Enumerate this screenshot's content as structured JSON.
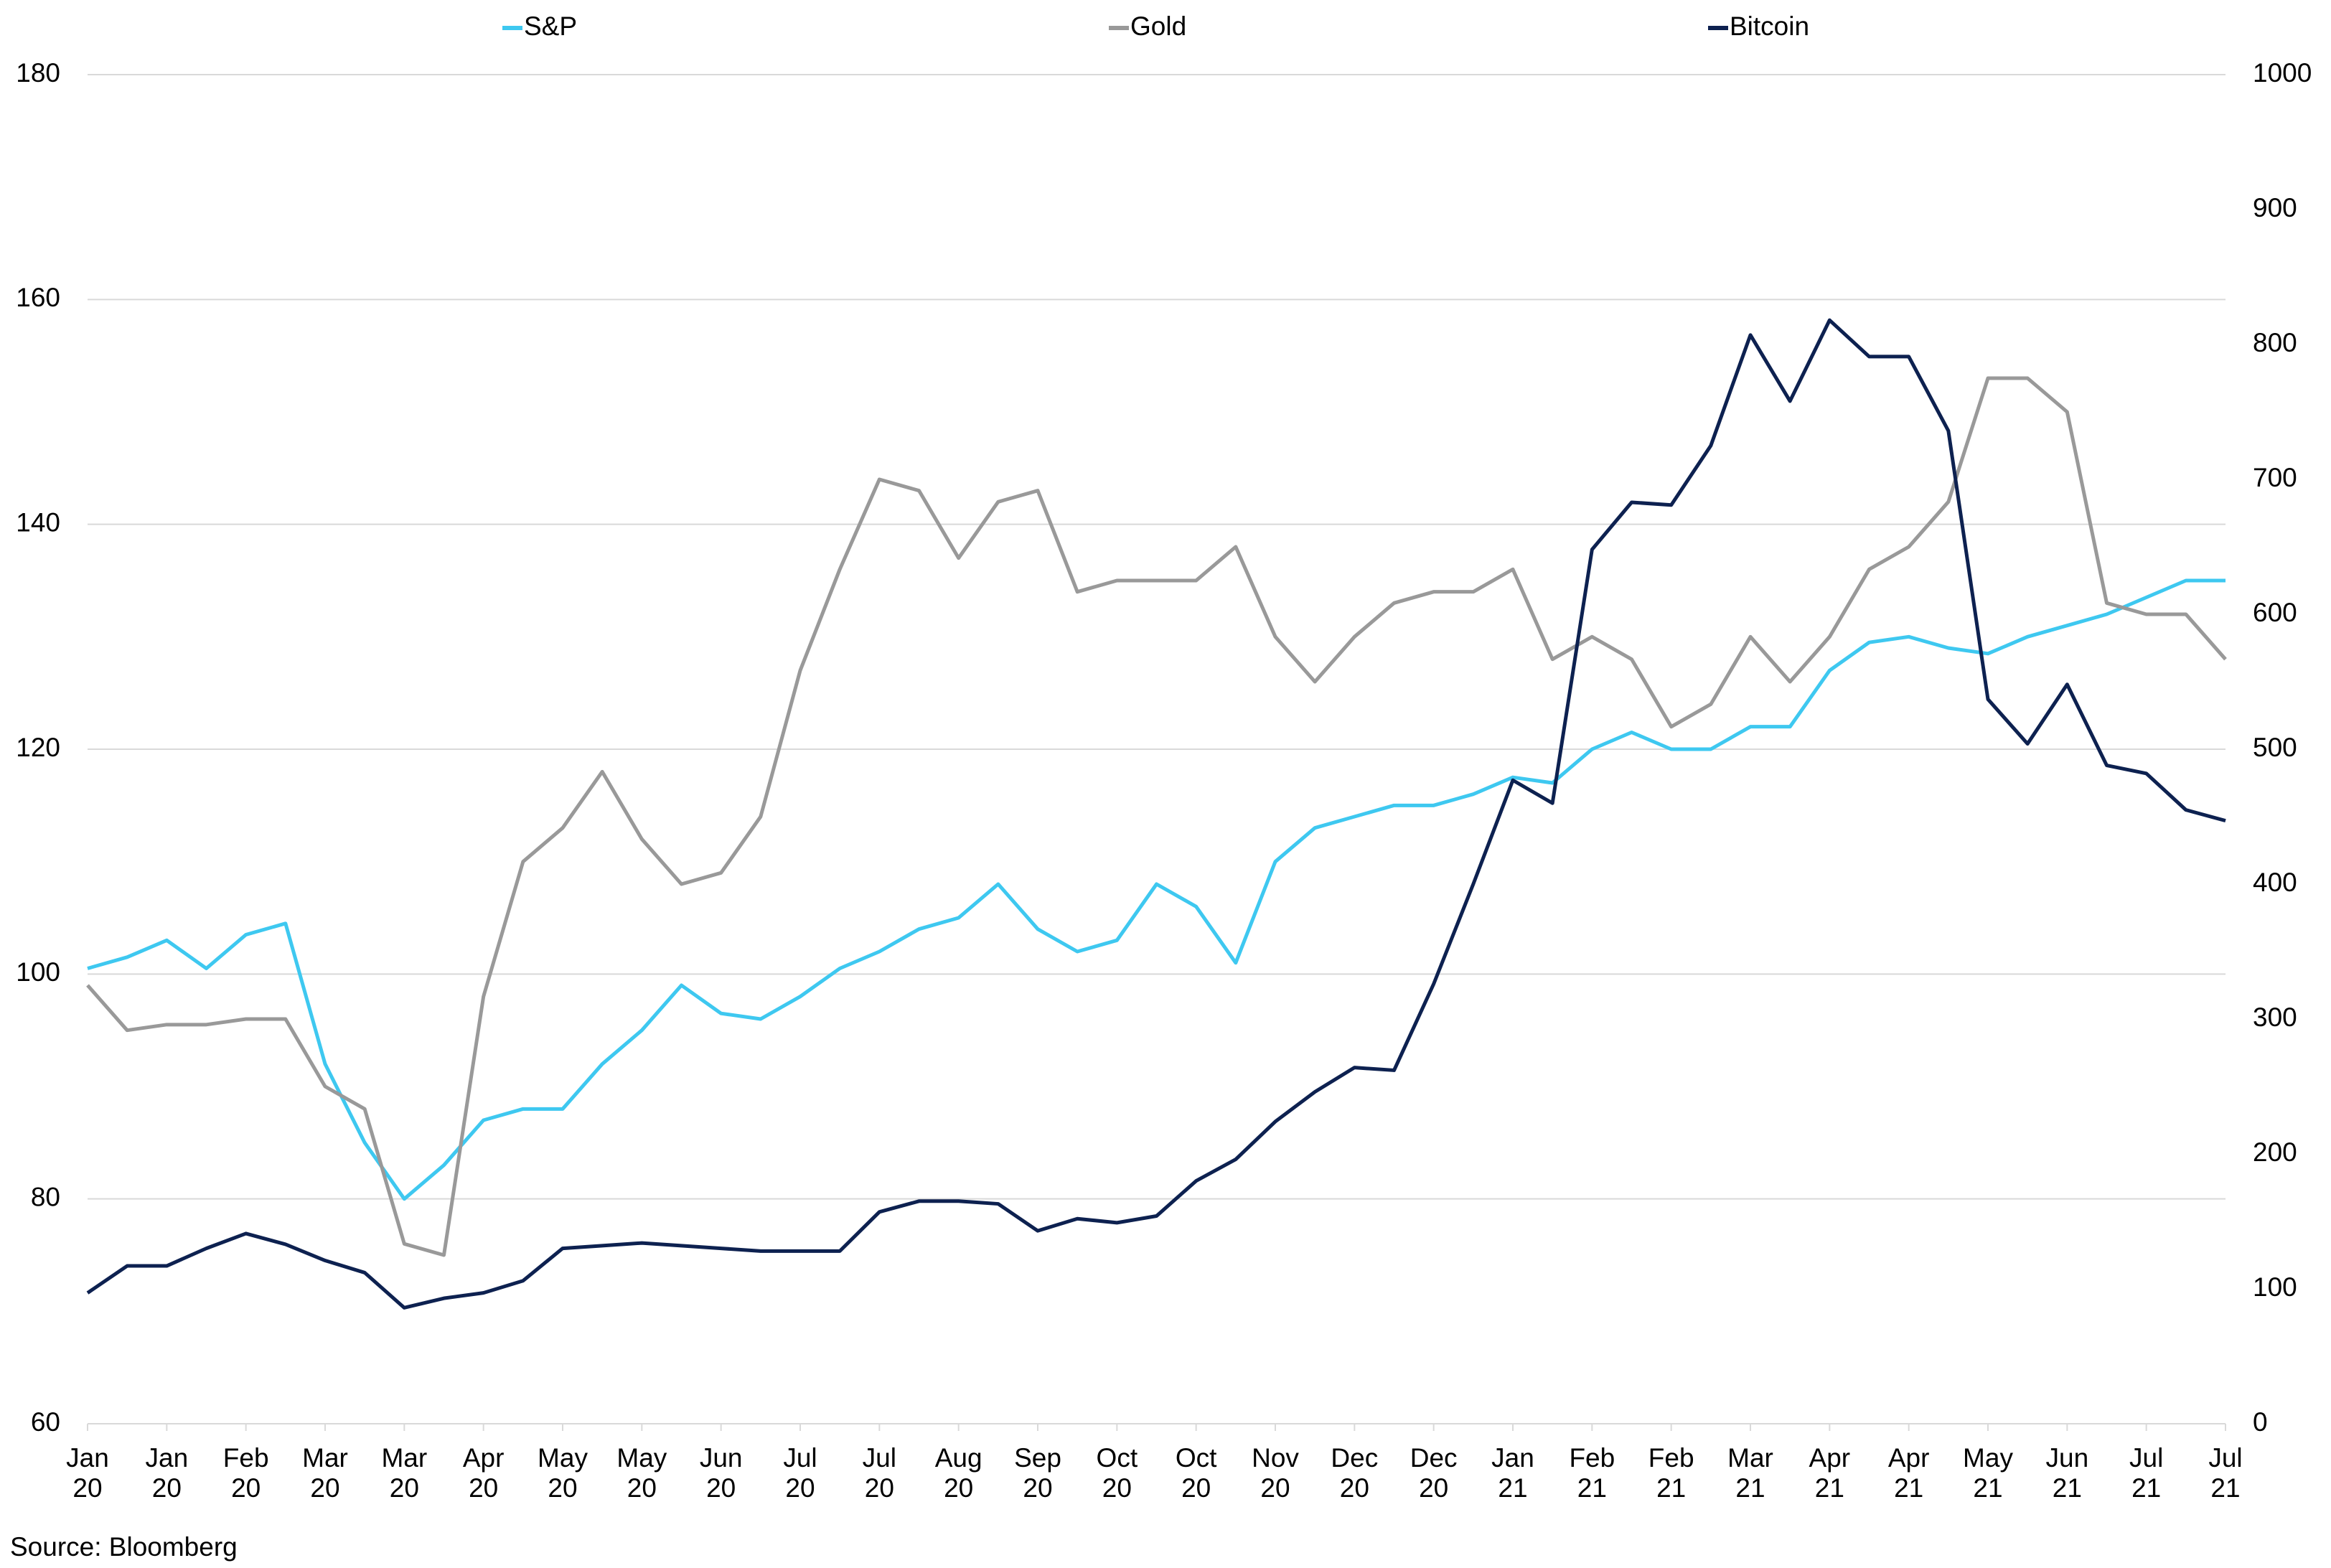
{
  "chart_data": {
    "type": "line",
    "x": [
      0,
      0.5,
      1,
      1.5,
      2,
      2.5,
      3,
      3.5,
      4,
      4.5,
      5,
      5.5,
      6,
      6.5,
      7,
      7.5,
      8,
      8.5,
      9,
      9.5,
      10,
      10.5,
      11,
      11.5,
      12,
      12.5,
      13,
      13.5,
      14,
      14.5,
      15,
      15.5,
      16,
      16.5,
      17,
      17.5,
      18,
      18.5,
      19,
      19.5,
      20,
      20.5,
      21,
      21.5,
      22,
      22.5,
      23,
      23.5,
      24,
      24.5,
      25,
      25.5,
      26,
      26.5,
      27
    ],
    "xlim": [
      0,
      27
    ],
    "xticks": [
      {
        "value": 0,
        "label": "Jan 20"
      },
      {
        "value": 1,
        "label": "Jan 20"
      },
      {
        "value": 2,
        "label": "Feb 20"
      },
      {
        "value": 3,
        "label": "Mar 20"
      },
      {
        "value": 4,
        "label": "Mar 20"
      },
      {
        "value": 5,
        "label": "Apr 20"
      },
      {
        "value": 6,
        "label": "May 20"
      },
      {
        "value": 7,
        "label": "May 20"
      },
      {
        "value": 8,
        "label": "Jun 20"
      },
      {
        "value": 9,
        "label": "Jul 20"
      },
      {
        "value": 10,
        "label": "Jul 20"
      },
      {
        "value": 11,
        "label": "Aug 20"
      },
      {
        "value": 12,
        "label": "Sep 20"
      },
      {
        "value": 13,
        "label": "Oct 20"
      },
      {
        "value": 14,
        "label": "Oct 20"
      },
      {
        "value": 15,
        "label": "Nov 20"
      },
      {
        "value": 16,
        "label": "Dec 20"
      },
      {
        "value": 17,
        "label": "Dec 20"
      },
      {
        "value": 18,
        "label": "Jan 21"
      },
      {
        "value": 19,
        "label": "Feb 21"
      },
      {
        "value": 20,
        "label": "Feb 21"
      },
      {
        "value": 21,
        "label": "Mar 21"
      },
      {
        "value": 22,
        "label": "Apr 21"
      },
      {
        "value": 23,
        "label": "Apr 21"
      },
      {
        "value": 24,
        "label": "May 21"
      },
      {
        "value": 25,
        "label": "Jun 21"
      },
      {
        "value": 26,
        "label": "Jul 21"
      },
      {
        "value": 27,
        "label": "Jul 21"
      }
    ],
    "ylim": [
      60,
      180
    ],
    "yticks": [
      60,
      80,
      100,
      120,
      140,
      160,
      180
    ],
    "y2lim": [
      0,
      1000
    ],
    "y2ticks": [
      0,
      100,
      200,
      300,
      400,
      500,
      600,
      700,
      800,
      900,
      1000
    ],
    "grid": true,
    "series": [
      {
        "name": "S&P",
        "color": "#3ec8f0",
        "values": [
          100.5,
          101.5,
          103,
          100.5,
          103.5,
          104.5,
          92,
          85,
          80,
          83,
          87,
          88,
          88,
          92,
          95,
          99,
          96.5,
          96,
          98,
          100.5,
          102,
          104,
          105,
          108,
          104,
          102,
          103,
          108,
          106,
          101,
          110,
          113,
          114,
          115,
          115,
          116,
          117.5,
          117,
          120,
          121.5,
          120,
          120,
          122,
          122,
          127,
          129.5,
          130,
          129,
          128.5,
          130,
          131,
          132,
          133.5,
          135,
          135
        ]
      },
      {
        "name": "Gold",
        "color": "#999999",
        "values": [
          99,
          95,
          95.5,
          95.5,
          96,
          96,
          90,
          88,
          76,
          75,
          98,
          110,
          113,
          118,
          112,
          108,
          109,
          114,
          127,
          136,
          144,
          143,
          137,
          142,
          143,
          134,
          135,
          135,
          135,
          138,
          130,
          126,
          130,
          133,
          134,
          134,
          136,
          128,
          130,
          128,
          122,
          124,
          130,
          126,
          130,
          136,
          138,
          142,
          153,
          153,
          150,
          133,
          132,
          132,
          128
        ]
      },
      {
        "name": "Bitcoin",
        "color": "#0d2150",
        "axis": "y2",
        "values": [
          97,
          117,
          117,
          130,
          141,
          133,
          121,
          112,
          86,
          93,
          97,
          106,
          130,
          132,
          134,
          132,
          130,
          128,
          128,
          128,
          157,
          165,
          165,
          163,
          143,
          152,
          149,
          154,
          180,
          196,
          224,
          246,
          264,
          262,
          326,
          400,
          477,
          460,
          648,
          683,
          681,
          725,
          807,
          758,
          818,
          791,
          791,
          736,
          537,
          504,
          548,
          488,
          482,
          455,
          447
        ]
      }
    ],
    "source": "Source: Bloomberg"
  }
}
